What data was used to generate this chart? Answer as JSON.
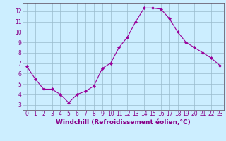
{
  "x": [
    0,
    1,
    2,
    3,
    4,
    5,
    6,
    7,
    8,
    9,
    10,
    11,
    12,
    13,
    14,
    15,
    16,
    17,
    18,
    19,
    20,
    21,
    22,
    23
  ],
  "y": [
    6.7,
    5.5,
    4.5,
    4.5,
    4.0,
    3.2,
    4.0,
    4.3,
    4.8,
    6.5,
    7.0,
    8.5,
    9.5,
    11.0,
    12.3,
    12.3,
    12.2,
    11.3,
    10.0,
    9.0,
    8.5,
    8.0,
    7.5,
    6.8
  ],
  "line_color": "#990099",
  "marker": "D",
  "marker_size": 2.0,
  "bg_color": "#cceeff",
  "grid_color": "#99bbcc",
  "xlabel": "Windchill (Refroidissement éolien,°C)",
  "xlim": [
    -0.5,
    23.5
  ],
  "ylim": [
    2.5,
    12.8
  ],
  "yticks": [
    3,
    4,
    5,
    6,
    7,
    8,
    9,
    10,
    11,
    12
  ],
  "xticks": [
    0,
    1,
    2,
    3,
    4,
    5,
    6,
    7,
    8,
    9,
    10,
    11,
    12,
    13,
    14,
    15,
    16,
    17,
    18,
    19,
    20,
    21,
    22,
    23
  ],
  "tick_label_fontsize": 5.5,
  "xlabel_fontsize": 6.5,
  "axis_label_color": "#880088",
  "spine_color": "#554455"
}
